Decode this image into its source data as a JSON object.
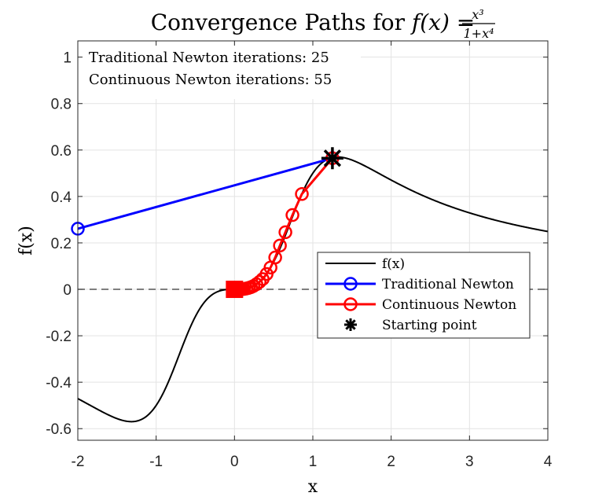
{
  "chart_data": {
    "type": "line",
    "title": "Convergence Paths for f(x) = x³/(1+x⁴)",
    "title_parts": {
      "prefix": "Convergence Paths for ",
      "func": "f(x) = ",
      "numerator": "x³",
      "denominator": "1+x⁴"
    },
    "xlabel": "x",
    "ylabel": "f(x)",
    "xlim": [
      -2,
      4
    ],
    "ylim": [
      -0.65,
      1.07
    ],
    "grid": true,
    "x_ticks": [
      -2,
      -1,
      0,
      1,
      2,
      3,
      4
    ],
    "x_tick_labels": [
      "-2",
      "-1",
      "0",
      "1",
      "2",
      "3",
      "4"
    ],
    "y_ticks": [
      -0.6,
      -0.4,
      -0.2,
      0,
      0.2,
      0.4,
      0.6,
      0.8,
      1
    ],
    "y_tick_labels": [
      "-0.6",
      "-0.4",
      "-0.2",
      "0",
      "0.2",
      "0.4",
      "0.6",
      "0.8",
      "1"
    ],
    "annotations": [
      "Traditional Newton iterations: 25",
      "Continuous Newton iterations: 55"
    ],
    "legend_position": "center-right",
    "series": [
      {
        "name": "f(x)",
        "color": "#000000",
        "style": "line",
        "function": "x^3/(1+x^4)",
        "x_range": [
          -2,
          4
        ]
      },
      {
        "name": "Traditional Newton",
        "color": "#0000ff",
        "style": "line-circle",
        "x": [
          1.25,
          -2.0
        ],
        "y": [
          0.5647,
          0.2611
        ]
      },
      {
        "name": "Continuous Newton",
        "color": "#ff0000",
        "style": "line-circle",
        "x": [
          1.25,
          0.86,
          0.74,
          0.65,
          0.58,
          0.52,
          0.46,
          0.41,
          0.36,
          0.32,
          0.28,
          0.24,
          0.21,
          0.18,
          0.15,
          0.12,
          0.1,
          0.08,
          0.06,
          0.05,
          0.04,
          0.03,
          0.02,
          0.015,
          0.01,
          0.005,
          0.0
        ],
        "y": [
          0.5647,
          0.4104,
          0.3199,
          0.2459,
          0.1885,
          0.1372,
          0.0937,
          0.0659,
          0.0442,
          0.0322,
          0.0219,
          0.0138,
          0.0093,
          0.0058,
          0.0034,
          0.0017,
          0.001,
          0.0005,
          0.0002,
          0.0001,
          0.0001,
          0.0,
          0.0,
          0.0,
          0.0,
          0.0,
          0.0
        ]
      },
      {
        "name": "Starting point",
        "color": "#000000",
        "style": "marker-asterisk",
        "x": [
          1.25
        ],
        "y": [
          0.5647
        ]
      }
    ],
    "zero_line": {
      "y": 0,
      "style": "dashed",
      "color": "#000000"
    }
  }
}
